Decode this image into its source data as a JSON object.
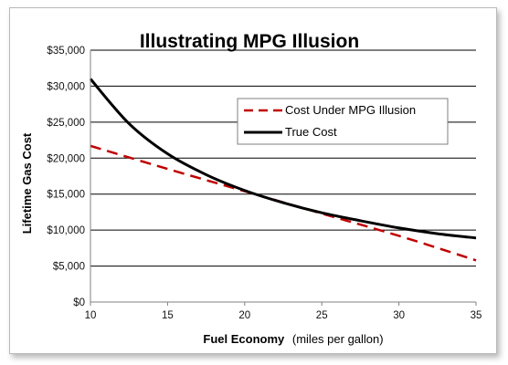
{
  "chart_data": {
    "type": "line",
    "title": "Illustrating MPG Illusion",
    "xlabel_bold": "Fuel Economy",
    "xlabel_rest": "(miles per gallon)",
    "ylabel": "Lifetime Gas Cost",
    "xlim": [
      10,
      35
    ],
    "ylim": [
      0,
      35000
    ],
    "xticks": [
      10,
      15,
      20,
      25,
      30,
      35
    ],
    "yticks": [
      0,
      5000,
      10000,
      15000,
      20000,
      25000,
      30000,
      35000
    ],
    "xtick_labels": [
      "10",
      "15",
      "20",
      "25",
      "30",
      "35"
    ],
    "ytick_labels": [
      "$0",
      "$5,000",
      "$10,000",
      "$15,000",
      "$20,000",
      "$25,000",
      "$30,000",
      "$35,000"
    ],
    "grid": "horizontal",
    "legend_position": "top-right",
    "series": [
      {
        "name": "Cost Under MPG Illusion",
        "style": "dashed",
        "color": "#c00000",
        "x": [
          10,
          15,
          20,
          25,
          30,
          35
        ],
        "y": [
          21700,
          18500,
          15400,
          12300,
          9200,
          5800
        ]
      },
      {
        "name": "True Cost",
        "style": "solid",
        "color": "#000000",
        "x": [
          10,
          12.5,
          15,
          17.5,
          20,
          22.5,
          25,
          27.5,
          30,
          32.5,
          35
        ],
        "y": [
          31000,
          24800,
          20600,
          17700,
          15500,
          13800,
          12400,
          11300,
          10300,
          9500,
          8900
        ]
      }
    ]
  }
}
